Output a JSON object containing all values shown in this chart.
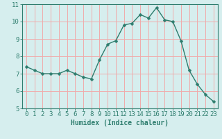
{
  "x": [
    0,
    1,
    2,
    3,
    4,
    5,
    6,
    7,
    8,
    9,
    10,
    11,
    12,
    13,
    14,
    15,
    16,
    17,
    18,
    19,
    20,
    21,
    22,
    23
  ],
  "y": [
    7.4,
    7.2,
    7.0,
    7.0,
    7.0,
    7.2,
    7.0,
    6.8,
    6.7,
    7.8,
    8.7,
    8.9,
    9.8,
    9.9,
    10.4,
    10.2,
    10.8,
    10.1,
    10.0,
    8.9,
    7.2,
    6.4,
    5.8,
    5.4
  ],
  "line_color": "#2e7d6e",
  "marker": "D",
  "marker_size": 2.5,
  "bg_color": "#d6eeee",
  "grid_color": "#f0aaaa",
  "xlabel": "Humidex (Indice chaleur)",
  "ylim": [
    5,
    11
  ],
  "yticks": [
    5,
    6,
    7,
    8,
    9,
    10,
    11
  ],
  "xlim": [
    -0.5,
    23.5
  ],
  "xticks": [
    0,
    1,
    2,
    3,
    4,
    5,
    6,
    7,
    8,
    9,
    10,
    11,
    12,
    13,
    14,
    15,
    16,
    17,
    18,
    19,
    20,
    21,
    22,
    23
  ],
  "xlabel_fontsize": 7,
  "tick_fontsize": 6.5,
  "line_width": 1.0
}
